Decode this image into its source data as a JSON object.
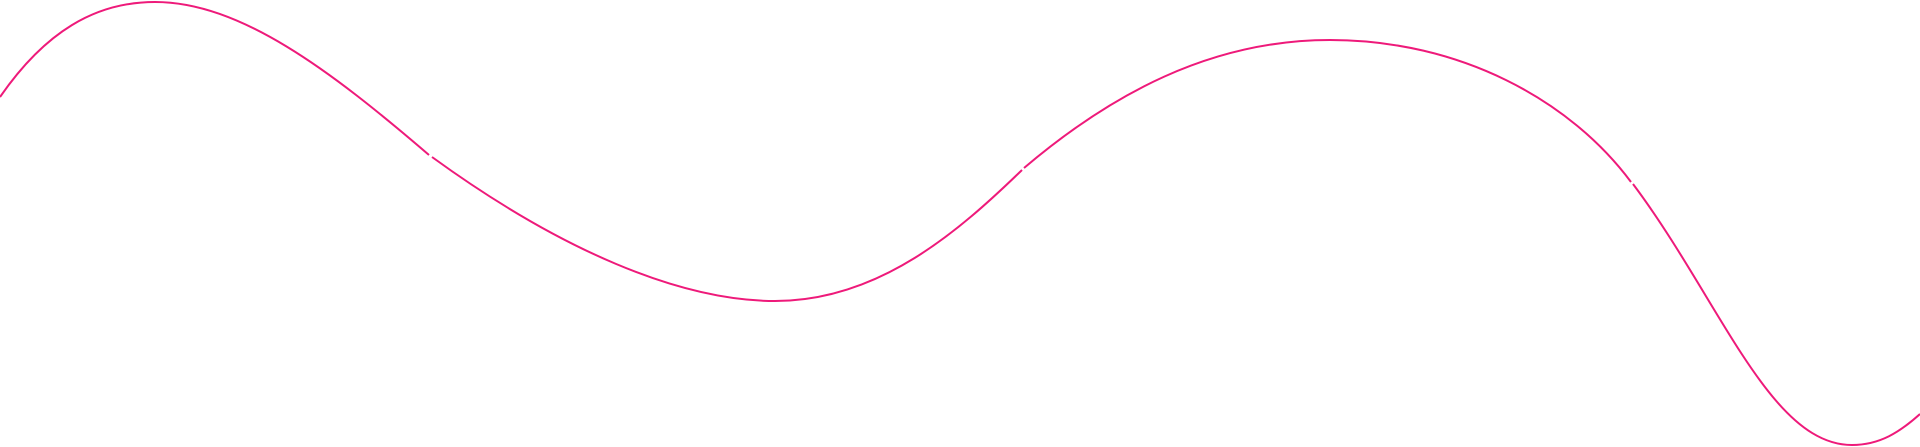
{
  "decoration": {
    "type": "wavy-line",
    "stroke_color": "#ee1a7a",
    "background": "#ffffff",
    "segments": 4
  }
}
